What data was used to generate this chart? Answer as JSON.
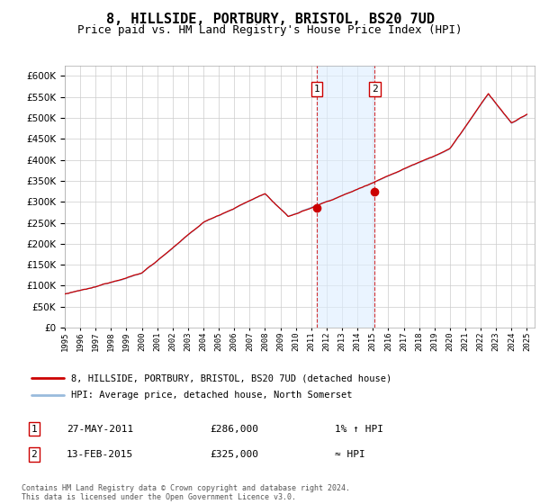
{
  "title": "8, HILLSIDE, PORTBURY, BRISTOL, BS20 7UD",
  "subtitle": "Price paid vs. HM Land Registry's House Price Index (HPI)",
  "ylim": [
    0,
    625000
  ],
  "yticks": [
    0,
    50000,
    100000,
    150000,
    200000,
    250000,
    300000,
    350000,
    400000,
    450000,
    500000,
    550000,
    600000
  ],
  "ytick_labels": [
    "£0",
    "£50K",
    "£100K",
    "£150K",
    "£200K",
    "£250K",
    "£300K",
    "£350K",
    "£400K",
    "£450K",
    "£500K",
    "£550K",
    "£600K"
  ],
  "xlim_start": 1995.0,
  "xlim_end": 2025.5,
  "vline1_x": 2011.38,
  "vline2_x": 2015.12,
  "marker1_label": "1",
  "marker2_label": "2",
  "shade_color": "#ddeeff",
  "shade_alpha": 0.6,
  "sale1_x": 2011.38,
  "sale1_y": 286000,
  "sale2_x": 2015.12,
  "sale2_y": 325000,
  "transaction1": [
    "1",
    "27-MAY-2011",
    "£286,000",
    "1% ↑ HPI"
  ],
  "transaction2": [
    "2",
    "13-FEB-2015",
    "£325,000",
    "≈ HPI"
  ],
  "legend_line1": "8, HILLSIDE, PORTBURY, BRISTOL, BS20 7UD (detached house)",
  "legend_line2": "HPI: Average price, detached house, North Somerset",
  "footer": "Contains HM Land Registry data © Crown copyright and database right 2024.\nThis data is licensed under the Open Government Licence v3.0.",
  "bg_color": "#ffffff",
  "grid_color": "#cccccc",
  "line_color_property": "#cc0000",
  "line_color_hpi": "#99bbdd",
  "title_fontsize": 11,
  "subtitle_fontsize": 9
}
